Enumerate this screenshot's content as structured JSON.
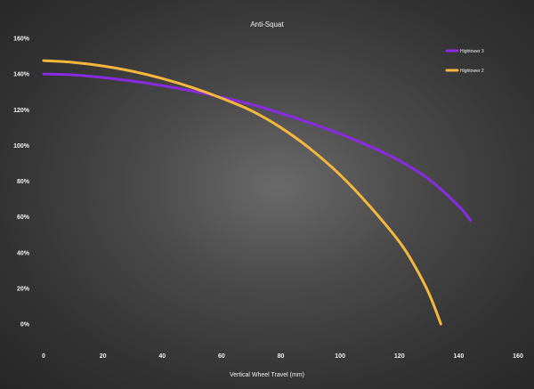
{
  "chart_data": {
    "type": "line",
    "title": "Anti-Squat",
    "xlabel": "Vertical Wheel Travel (mm)",
    "ylabel": "",
    "xlim": [
      0,
      160
    ],
    "ylim": [
      0,
      160
    ],
    "x_ticks": [
      "0",
      "20",
      "40",
      "60",
      "80",
      "100",
      "120",
      "140",
      "160"
    ],
    "y_ticks": [
      "0%",
      "20%",
      "40%",
      "60%",
      "80%",
      "100%",
      "120%",
      "140%",
      "160%"
    ],
    "grid": false,
    "legend_position": "top-right",
    "series": [
      {
        "name": "Hightower 3",
        "color": "#8a2be2",
        "points": [
          [
            0,
            140
          ],
          [
            10,
            139.5
          ],
          [
            20,
            138
          ],
          [
            30,
            136
          ],
          [
            40,
            133.5
          ],
          [
            50,
            130.5
          ],
          [
            60,
            127
          ],
          [
            70,
            123
          ],
          [
            80,
            118
          ],
          [
            90,
            112.5
          ],
          [
            100,
            106.5
          ],
          [
            110,
            99.5
          ],
          [
            120,
            91.5
          ],
          [
            130,
            81
          ],
          [
            140,
            66
          ],
          [
            144,
            58
          ]
        ]
      },
      {
        "name": "Hightower 2",
        "color": "#f5b83d",
        "points": [
          [
            0,
            147.5
          ],
          [
            10,
            146.5
          ],
          [
            20,
            144.5
          ],
          [
            30,
            141.5
          ],
          [
            40,
            137.5
          ],
          [
            50,
            132.5
          ],
          [
            60,
            126.5
          ],
          [
            70,
            119.5
          ],
          [
            80,
            110
          ],
          [
            90,
            98
          ],
          [
            100,
            83.5
          ],
          [
            110,
            66
          ],
          [
            120,
            46
          ],
          [
            125,
            33
          ],
          [
            130,
            17
          ],
          [
            134,
            0
          ]
        ]
      }
    ]
  }
}
